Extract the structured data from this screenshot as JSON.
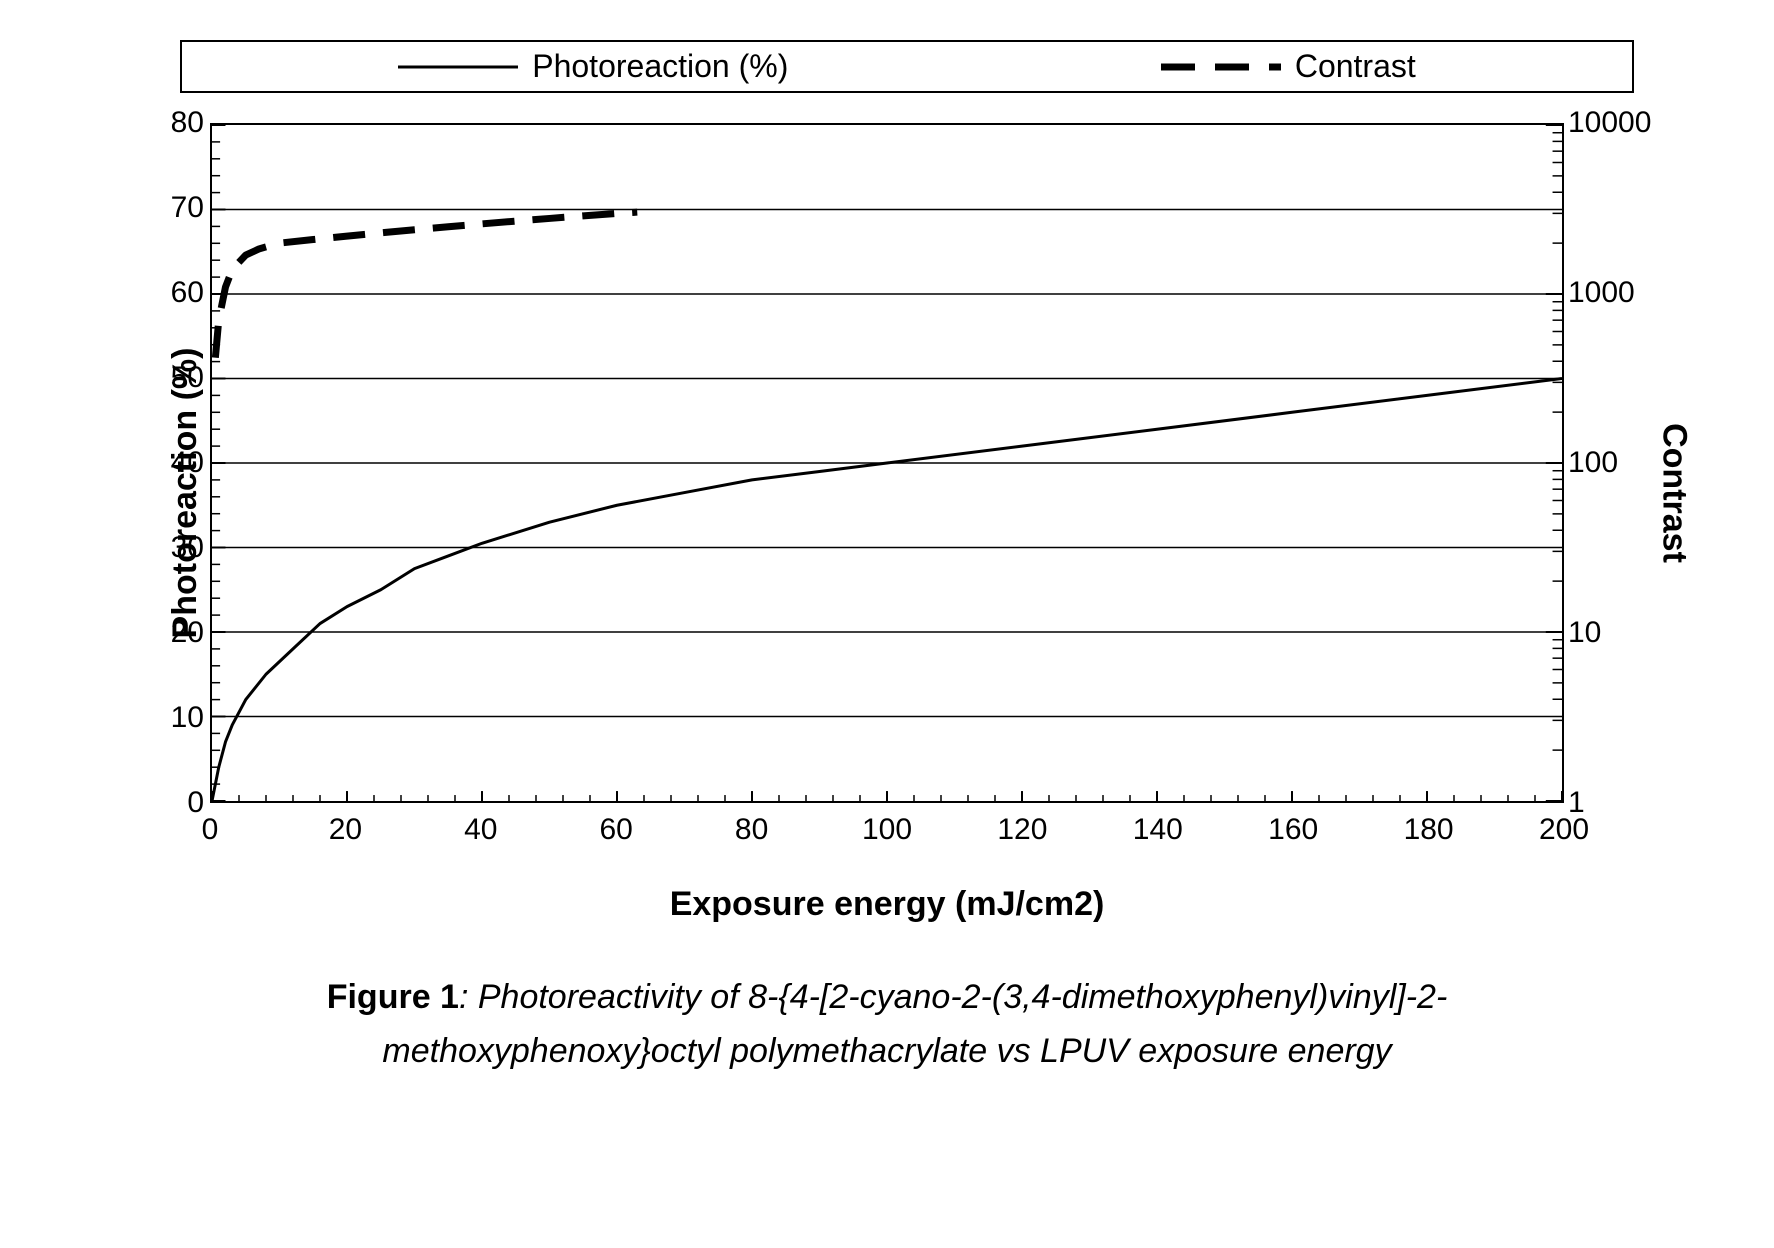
{
  "legend": {
    "series1_label": "Photoreaction (%)",
    "series2_label": "Contrast"
  },
  "axes": {
    "y1_label": "Photoreaction (%)",
    "y2_label": "Contrast",
    "x_label": "Exposure energy (mJ/cm2)",
    "x_min": 0,
    "x_max": 200,
    "x_ticks": [
      0,
      20,
      40,
      60,
      80,
      100,
      120,
      140,
      160,
      180,
      200
    ],
    "x_minor_step": 4,
    "y1_min": 0,
    "y1_max": 80,
    "y1_ticks": [
      0,
      10,
      20,
      30,
      40,
      50,
      60,
      70,
      80
    ],
    "y1_minor_step": 2,
    "y2_log": true,
    "y2_min": 1,
    "y2_max": 10000,
    "y2_ticks": [
      1,
      10,
      100,
      1000,
      10000
    ]
  },
  "style": {
    "background_color": "#ffffff",
    "grid_color": "#000000",
    "grid_width": 1.5,
    "border_color": "#000000",
    "tick_color": "#000000",
    "tick_len_major": 10,
    "tick_len_minor": 6,
    "series1": {
      "color": "#000000",
      "line_width": 3,
      "dash": "none"
    },
    "series2": {
      "color": "#000000",
      "line_width": 7,
      "dash": "32 18"
    },
    "tick_fontsize": 30,
    "label_fontsize": 34,
    "legend_fontsize": 32,
    "caption_fontsize": 34
  },
  "series": {
    "photoreaction": {
      "x": [
        0,
        1,
        2,
        3,
        5,
        8,
        12,
        16,
        20,
        25,
        30,
        35,
        40,
        50,
        60,
        70,
        80,
        90,
        100,
        120,
        140,
        160,
        180,
        200
      ],
      "y": [
        0,
        4,
        7,
        9,
        12,
        15,
        18,
        21,
        23,
        25,
        27.5,
        29,
        30.5,
        33,
        35,
        36.5,
        38,
        39,
        40,
        42,
        44,
        46,
        48,
        50
      ]
    },
    "contrast": {
      "x": [
        0.5,
        1,
        2,
        3,
        5,
        7,
        10,
        15,
        20,
        25,
        30,
        35,
        40,
        45,
        50,
        55,
        60,
        63
      ],
      "y": [
        420,
        700,
        1100,
        1400,
        1700,
        1850,
        2000,
        2100,
        2200,
        2300,
        2400,
        2500,
        2600,
        2700,
        2800,
        2900,
        3000,
        3050
      ]
    }
  },
  "caption": {
    "fig_label": "Figure 1",
    "line1": ": Photoreactivity of 8-{4-[2-cyano-2-(3,4-dimethoxyphenyl)vinyl]-2-",
    "line2": "methoxyphenoxy}octyl polymethacrylate vs LPUV exposure energy"
  }
}
